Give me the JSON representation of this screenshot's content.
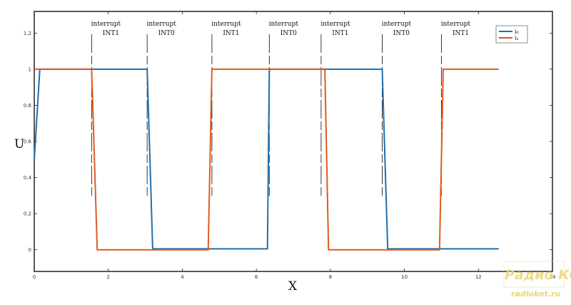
{
  "chart_data": {
    "type": "line",
    "xlabel": "X",
    "ylabel": "U",
    "xlim": [
      0,
      14
    ],
    "ylim": [
      -0.12,
      1.32
    ],
    "x_ticks": [
      {
        "value": 0,
        "label": "0"
      },
      {
        "value": 2,
        "label": "2"
      },
      {
        "value": 4,
        "label": "4"
      },
      {
        "value": 6,
        "label": "6"
      },
      {
        "value": 8,
        "label": "8"
      },
      {
        "value": 10,
        "label": "10"
      },
      {
        "value": 12,
        "label": "12"
      },
      {
        "value": 14,
        "label": "14"
      }
    ],
    "y_ticks": [
      {
        "value": 0,
        "label": "0"
      },
      {
        "value": 0.2,
        "label": "0.2"
      },
      {
        "value": 0.4,
        "label": "0.4"
      },
      {
        "value": 0.6,
        "label": "0.6"
      },
      {
        "value": 0.8,
        "label": "0.8"
      },
      {
        "value": 1.0,
        "label": "1"
      },
      {
        "value": 1.2,
        "label": "1.2"
      }
    ],
    "grid": false,
    "legend_position": "top-right",
    "series": [
      {
        "name": "i₀",
        "color": "#1f6fb0",
        "x": [
          0,
          0.15,
          3.05,
          3.2,
          6.3,
          6.35,
          9.4,
          9.55,
          12.55
        ],
        "y": [
          0.5,
          1.0,
          1.0,
          0.005,
          0.005,
          1.0,
          1.0,
          0.005,
          0.005
        ]
      },
      {
        "name": "i₁",
        "color": "#e05a1e",
        "x": [
          0,
          0.15,
          1.55,
          1.7,
          4.7,
          4.8,
          7.85,
          7.95,
          10.95,
          11.05,
          12.55
        ],
        "y": [
          1.0,
          1.0,
          1.0,
          0.0,
          0.0,
          1.0,
          1.0,
          0.0,
          0.0,
          1.0,
          1.0
        ]
      }
    ],
    "annotations": [
      {
        "x": 1.55,
        "line1": "interrupt",
        "line2": "INT1"
      },
      {
        "x": 3.05,
        "line1": "interrupt",
        "line2": "INT0"
      },
      {
        "x": 4.8,
        "line1": "interrupt",
        "line2": "INT1"
      },
      {
        "x": 6.35,
        "line1": "interrupt",
        "line2": "INT0"
      },
      {
        "x": 7.75,
        "line1": "interrupt",
        "line2": "INT1"
      },
      {
        "x": 9.4,
        "line1": "interrupt",
        "line2": "INT0"
      },
      {
        "x": 11.0,
        "line1": "interrupt",
        "line2": "INT1"
      }
    ],
    "colors": {
      "axes": "#222222",
      "marker_line": "#222222"
    }
  },
  "watermark": {
    "logo_text": "Радио КОТ",
    "site": "radiokot.ru",
    "color": "#e8d67a"
  }
}
